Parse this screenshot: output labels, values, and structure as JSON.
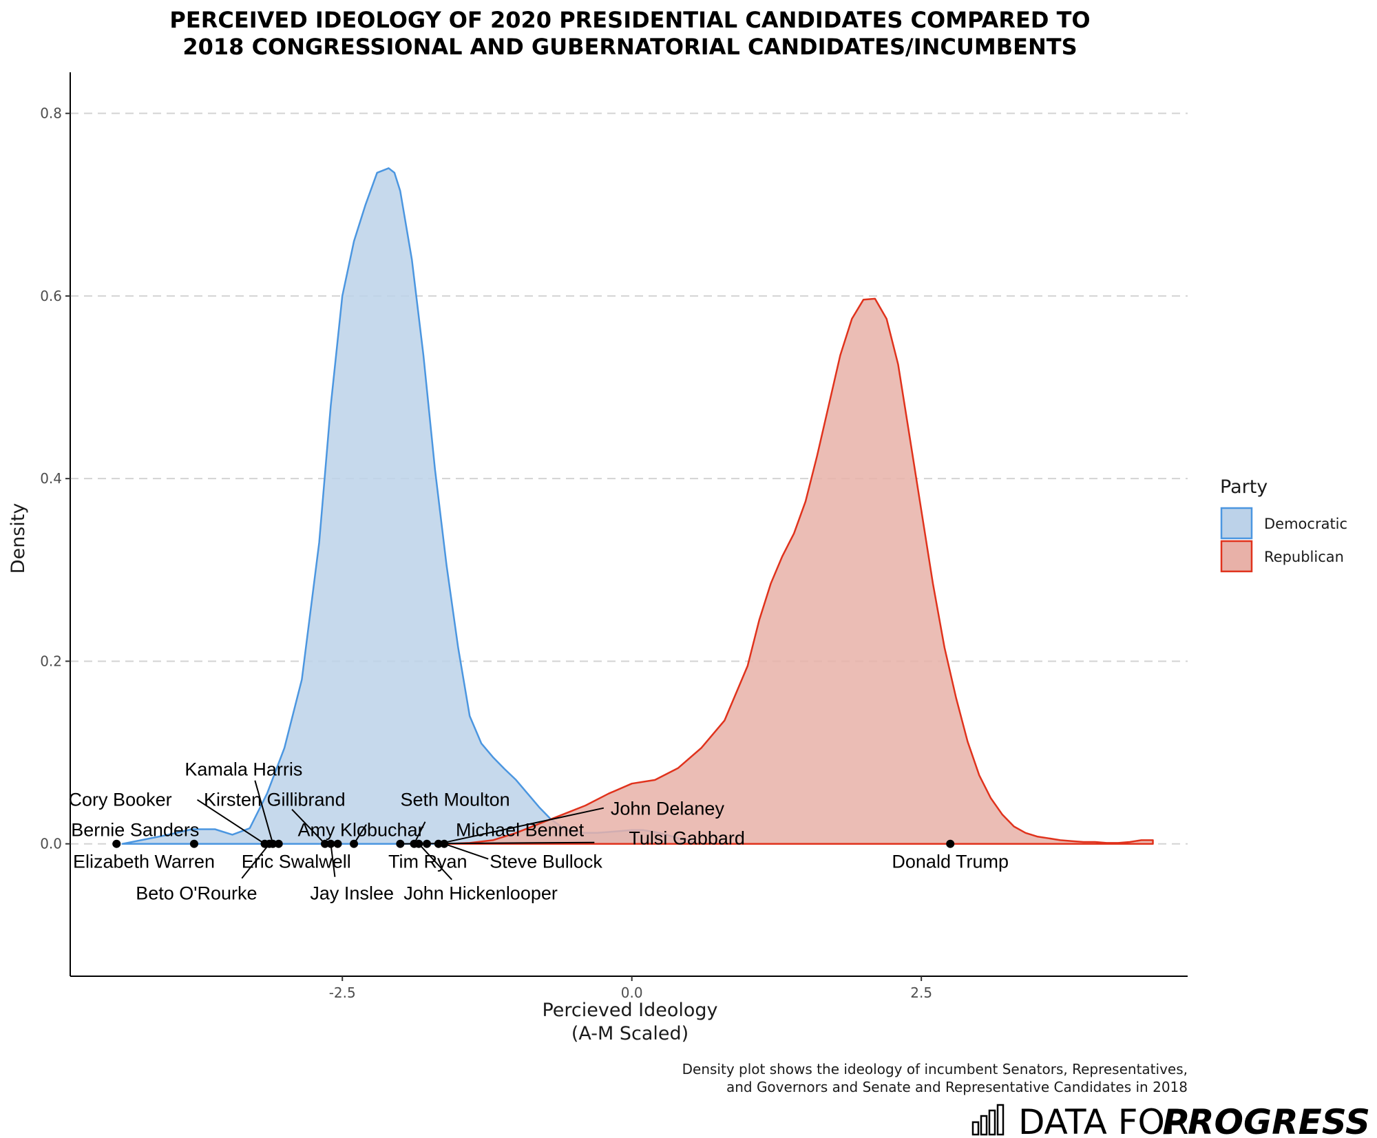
{
  "chart_data": {
    "type": "area",
    "title": "PERCEIVED IDEOLOGY OF 2020 PRESIDENTIAL CANDIDATES COMPARED TO 2018 CONGRESSIONAL AND GUBERNATORIAL CANDIDATES/INCUMBENTS",
    "title_lines": [
      "PERCEIVED IDEOLOGY OF 2020 PRESIDENTIAL CANDIDATES COMPARED TO",
      "2018 CONGRESSIONAL AND GUBERNATORIAL CANDIDATES/INCUMBENTS"
    ],
    "xlabel_lines": [
      "Percieved Ideology",
      "(A-M Scaled)"
    ],
    "ylabel": "Density",
    "xlim": [
      -4.85,
      4.8
    ],
    "ylim": [
      -0.145,
      0.845
    ],
    "x_ticks": [
      {
        "value": -2.5,
        "label": "-2.5"
      },
      {
        "value": 0.0,
        "label": "0.0"
      },
      {
        "value": 2.5,
        "label": "2.5"
      }
    ],
    "y_ticks": [
      {
        "value": 0.0,
        "label": "0.0"
      },
      {
        "value": 0.2,
        "label": "0.2"
      },
      {
        "value": 0.4,
        "label": "0.4"
      },
      {
        "value": 0.6,
        "label": "0.6"
      },
      {
        "value": 0.8,
        "label": "0.8"
      }
    ],
    "grid": "horizontal dashed",
    "legend": {
      "title": "Party",
      "position": "right"
    },
    "series": [
      {
        "name": "Democratic",
        "fill": "#bcd2e9",
        "stroke": "#4b96e0",
        "x": [
          -4.4,
          -4.2,
          -4.0,
          -3.8,
          -3.6,
          -3.45,
          -3.3,
          -3.15,
          -3.0,
          -2.85,
          -2.7,
          -2.6,
          -2.5,
          -2.4,
          -2.3,
          -2.2,
          -2.1,
          -2.05,
          -2.0,
          -1.9,
          -1.8,
          -1.7,
          -1.6,
          -1.5,
          -1.4,
          -1.3,
          -1.2,
          -1.1,
          -1.0,
          -0.9,
          -0.8,
          -0.7,
          -0.6,
          -0.5,
          -0.4,
          -0.3,
          -0.2,
          -0.1,
          0.0,
          0.1,
          0.2,
          0.3,
          0.4,
          0.5,
          0.55
        ],
        "y": [
          0.0,
          0.005,
          0.01,
          0.016,
          0.016,
          0.01,
          0.017,
          0.055,
          0.105,
          0.18,
          0.33,
          0.48,
          0.6,
          0.66,
          0.7,
          0.735,
          0.74,
          0.735,
          0.715,
          0.64,
          0.535,
          0.41,
          0.305,
          0.215,
          0.14,
          0.11,
          0.095,
          0.082,
          0.07,
          0.055,
          0.04,
          0.027,
          0.018,
          0.013,
          0.012,
          0.012,
          0.013,
          0.014,
          0.015,
          0.015,
          0.013,
          0.01,
          0.006,
          0.004,
          0.0
        ]
      },
      {
        "name": "Republican",
        "fill": "#e8b1a8",
        "stroke": "#e0321c",
        "x": [
          -1.6,
          -1.4,
          -1.2,
          -1.0,
          -0.8,
          -0.6,
          -0.4,
          -0.2,
          0.0,
          0.2,
          0.4,
          0.6,
          0.8,
          1.0,
          1.1,
          1.2,
          1.3,
          1.4,
          1.5,
          1.6,
          1.7,
          1.8,
          1.9,
          2.0,
          2.1,
          2.2,
          2.3,
          2.4,
          2.5,
          2.6,
          2.7,
          2.8,
          2.9,
          3.0,
          3.1,
          3.2,
          3.3,
          3.4,
          3.5,
          3.6,
          3.7,
          3.8,
          3.9,
          4.0,
          4.1,
          4.2,
          4.3,
          4.4,
          4.5
        ],
        "y": [
          0.0,
          0.001,
          0.004,
          0.012,
          0.022,
          0.032,
          0.042,
          0.055,
          0.066,
          0.07,
          0.083,
          0.105,
          0.135,
          0.195,
          0.245,
          0.285,
          0.315,
          0.34,
          0.375,
          0.425,
          0.48,
          0.535,
          0.575,
          0.596,
          0.597,
          0.575,
          0.525,
          0.445,
          0.365,
          0.285,
          0.215,
          0.16,
          0.112,
          0.075,
          0.05,
          0.032,
          0.019,
          0.012,
          0.008,
          0.006,
          0.004,
          0.003,
          0.002,
          0.002,
          0.001,
          0.001,
          0.002,
          0.004,
          0.004
        ]
      }
    ],
    "points": [
      {
        "name": "Bernie Sanders",
        "x": -4.45
      },
      {
        "name": "Elizabeth Warren",
        "x": -3.78
      },
      {
        "name": "Cory Booker",
        "x": -3.17
      },
      {
        "name": "Beto O'Rourke",
        "x": -3.13
      },
      {
        "name": "Kamala Harris",
        "x": -3.1
      },
      {
        "name": "Eric Swalwell",
        "x": -3.05
      },
      {
        "name": "Kirsten Gillibrand",
        "x": -2.65
      },
      {
        "name": "Jay Inslee",
        "x": -2.6
      },
      {
        "name": "Amy Klobuchar",
        "x": -2.54
      },
      {
        "name": "Michael Bennet",
        "x": -2.4
      },
      {
        "name": "Tulsi Gabbard",
        "x": -2.0
      },
      {
        "name": "Seth Moulton",
        "x": -1.88
      },
      {
        "name": "John Hickenlooper",
        "x": -1.84
      },
      {
        "name": "Tim Ryan",
        "x": -1.77
      },
      {
        "name": "John Delaney",
        "x": -1.67
      },
      {
        "name": "Steve Bullock",
        "x": -1.62
      },
      {
        "name": "Donald Trump",
        "x": 2.75
      }
    ],
    "caption_lines": [
      "Density plot shows the ideology of incumbent Senators, Representatives,",
      "and Governors and Senate and Representative Candidates in 2018"
    ]
  },
  "brand": {
    "light": "DATA FOR",
    "bold": "PROGRESS"
  }
}
